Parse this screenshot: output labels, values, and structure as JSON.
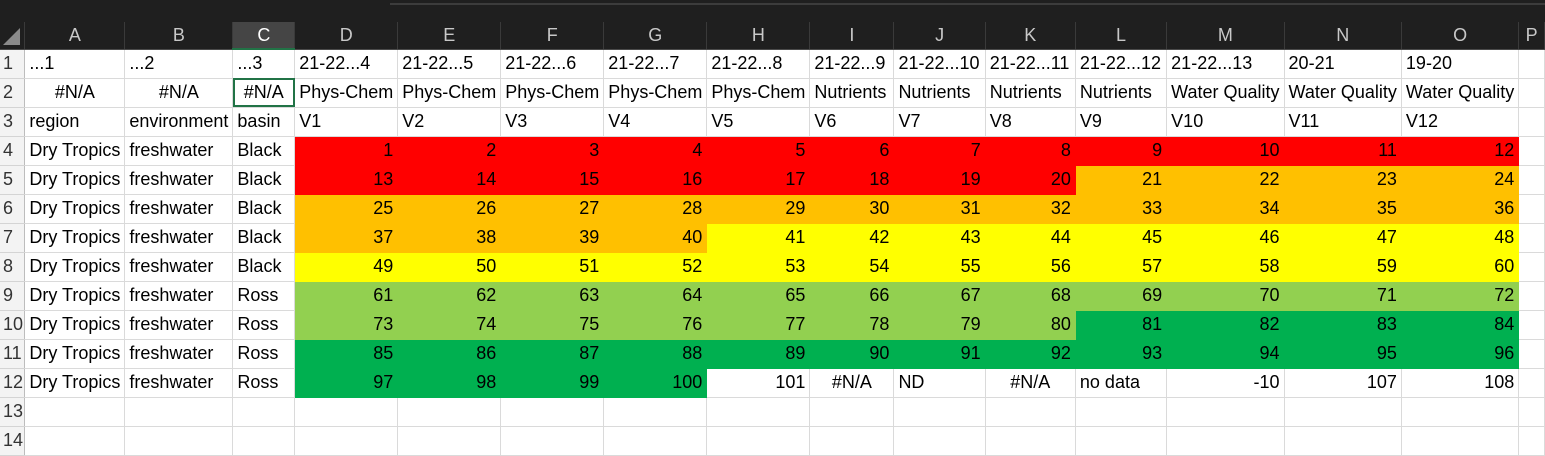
{
  "columns": [
    "A",
    "B",
    "C",
    "D",
    "E",
    "F",
    "G",
    "H",
    "I",
    "J",
    "K",
    "L",
    "M",
    "N",
    "O",
    "P"
  ],
  "selected_column": "C",
  "selected_cell": "C2",
  "colors": {
    "red": "#ff0000",
    "orange": "#ffc000",
    "yellow": "#ffff00",
    "light-green": "#92d050",
    "green": "#00b050"
  },
  "rows": [
    {
      "n": "1",
      "cells": [
        "...1",
        "...2",
        "...3",
        "21-22...4",
        "21-22...5",
        "21-22...6",
        "21-22...7",
        "21-22...8",
        "21-22...9",
        "21-22...10",
        "21-22...11",
        "21-22...12",
        "21-22...13",
        "20-21",
        "19-20",
        ""
      ]
    },
    {
      "n": "2",
      "cells": [
        "#N/A",
        "#N/A",
        "#N/A",
        "Phys-Chem",
        "Phys-Chem",
        "Phys-Chem",
        "Phys-Chem",
        "Phys-Chem",
        "Nutrients",
        "Nutrients",
        "Nutrients",
        "Nutrients",
        "Water Quality",
        "Water Quality",
        "Water Quality",
        ""
      ]
    },
    {
      "n": "3",
      "cells": [
        "region",
        "environment",
        "basin",
        "V1",
        "V2",
        "V3",
        "V4",
        "V5",
        "V6",
        "V7",
        "V8",
        "V9",
        "V10",
        "V11",
        "V12",
        ""
      ]
    },
    {
      "n": "4",
      "cells": [
        "Dry Tropics",
        "freshwater",
        "Black",
        "1",
        "2",
        "3",
        "4",
        "5",
        "6",
        "7",
        "8",
        "9",
        "10",
        "11",
        "12",
        ""
      ]
    },
    {
      "n": "5",
      "cells": [
        "Dry Tropics",
        "freshwater",
        "Black",
        "13",
        "14",
        "15",
        "16",
        "17",
        "18",
        "19",
        "20",
        "21",
        "22",
        "23",
        "24",
        ""
      ]
    },
    {
      "n": "6",
      "cells": [
        "Dry Tropics",
        "freshwater",
        "Black",
        "25",
        "26",
        "27",
        "28",
        "29",
        "30",
        "31",
        "32",
        "33",
        "34",
        "35",
        "36",
        ""
      ]
    },
    {
      "n": "7",
      "cells": [
        "Dry Tropics",
        "freshwater",
        "Black",
        "37",
        "38",
        "39",
        "40",
        "41",
        "42",
        "43",
        "44",
        "45",
        "46",
        "47",
        "48",
        ""
      ]
    },
    {
      "n": "8",
      "cells": [
        "Dry Tropics",
        "freshwater",
        "Black",
        "49",
        "50",
        "51",
        "52",
        "53",
        "54",
        "55",
        "56",
        "57",
        "58",
        "59",
        "60",
        ""
      ]
    },
    {
      "n": "9",
      "cells": [
        "Dry Tropics",
        "freshwater",
        "Ross",
        "61",
        "62",
        "63",
        "64",
        "65",
        "66",
        "67",
        "68",
        "69",
        "70",
        "71",
        "72",
        ""
      ]
    },
    {
      "n": "10",
      "cells": [
        "Dry Tropics",
        "freshwater",
        "Ross",
        "73",
        "74",
        "75",
        "76",
        "77",
        "78",
        "79",
        "80",
        "81",
        "82",
        "83",
        "84",
        ""
      ]
    },
    {
      "n": "11",
      "cells": [
        "Dry Tropics",
        "freshwater",
        "Ross",
        "85",
        "86",
        "87",
        "88",
        "89",
        "90",
        "91",
        "92",
        "93",
        "94",
        "95",
        "96",
        ""
      ]
    },
    {
      "n": "12",
      "cells": [
        "Dry Tropics",
        "freshwater",
        "Ross",
        "97",
        "98",
        "99",
        "100",
        "101",
        "#N/A",
        "ND",
        "#N/A",
        "no data",
        "-10",
        "107",
        "108",
        ""
      ]
    },
    {
      "n": "13",
      "cells": [
        "",
        "",
        "",
        "",
        "",
        "",
        "",
        "",
        "",
        "",
        "",
        "",
        "",
        "",
        "",
        ""
      ]
    },
    {
      "n": "14",
      "cells": [
        "",
        "",
        "",
        "",
        "",
        "",
        "",
        "",
        "",
        "",
        "",
        "",
        "",
        "",
        "",
        ""
      ]
    }
  ]
}
